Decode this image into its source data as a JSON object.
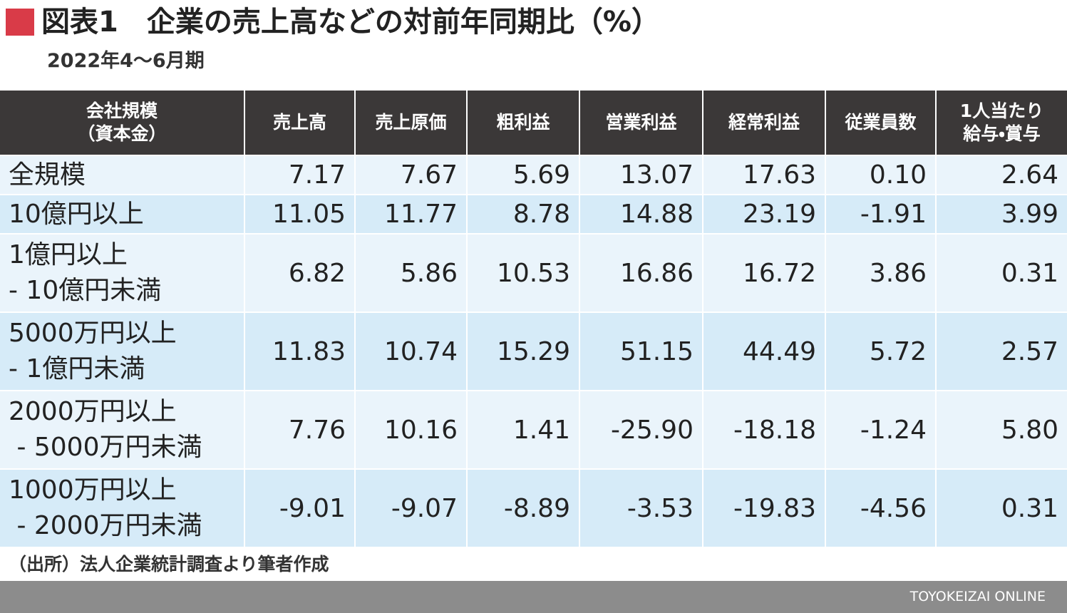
{
  "header": {
    "title": "図表1　企業の売上高などの対前年同期比（%）",
    "subtitle": "2022年4〜6月期"
  },
  "table": {
    "columns": [
      "会社規模\n（資本金）",
      "売上高",
      "売上原価",
      "粗利益",
      "営業利益",
      "経常利益",
      "従業員数",
      "1人当たり\n給与・賞与"
    ],
    "rows": [
      [
        "全規模",
        "7.17",
        "7.67",
        "5.69",
        "13.07",
        "17.63",
        "0.10",
        "2.64"
      ],
      [
        "10億円以上",
        "11.05",
        "11.77",
        "8.78",
        "14.88",
        "23.19",
        "-1.91",
        "3.99"
      ],
      [
        "1億円以上\n- 10億円未満",
        "6.82",
        "5.86",
        "10.53",
        "16.86",
        "16.72",
        "3.86",
        "0.31"
      ],
      [
        "5000万円以上\n- 1億円未満",
        "11.83",
        "10.74",
        "15.29",
        "51.15",
        "44.49",
        "5.72",
        "2.57"
      ],
      [
        "2000万円以上\n - 5000万円未満",
        "7.76",
        "10.16",
        "1.41",
        "-25.90",
        "-18.18",
        "-1.24",
        "5.80"
      ],
      [
        "1000万円以上\n - 2000万円未満",
        "-9.01",
        "-9.07",
        "-8.89",
        "-3.53",
        "-19.83",
        "-4.56",
        "0.31"
      ]
    ]
  },
  "footer": {
    "source": "（出所）法人企業統計調査より筆者作成",
    "brand": "TOYOKEIZAI ONLINE"
  }
}
